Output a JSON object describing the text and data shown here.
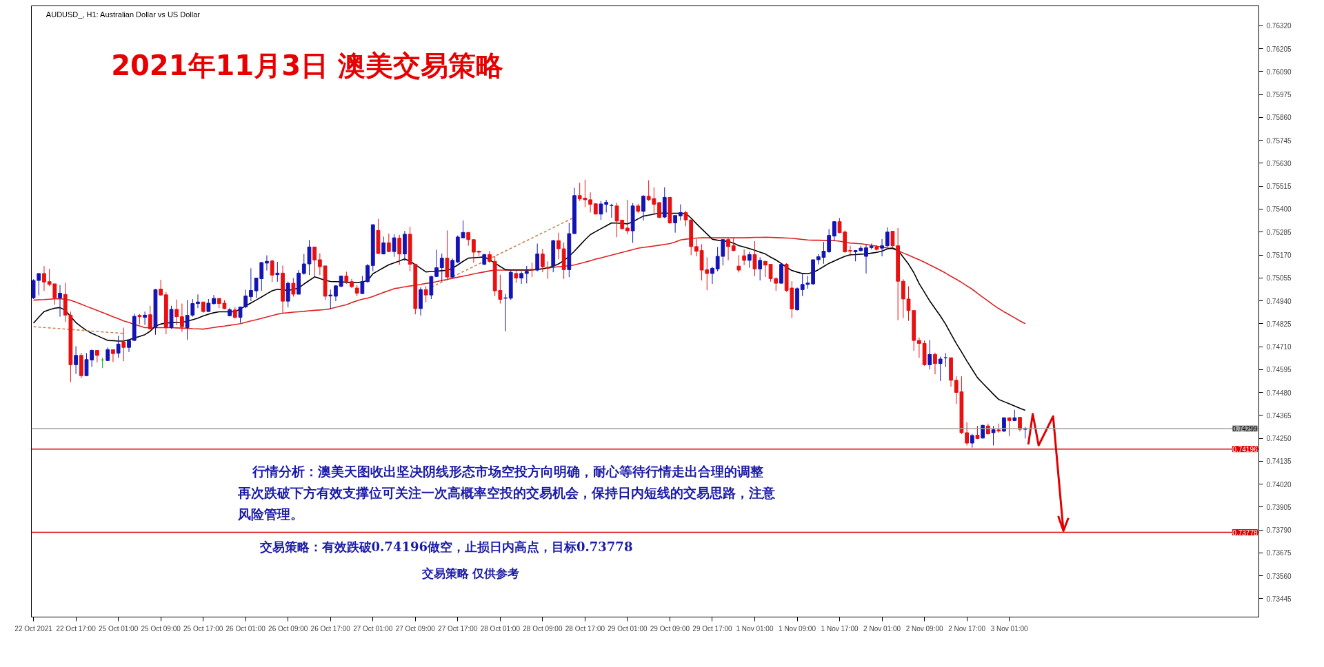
{
  "chart_data": {
    "type": "candlestick",
    "title": "2021年11月3日  澳美交易策略",
    "subtitle": "AUDUSD_, H1:  Australian Dollar vs US Dollar",
    "annotations": [
      "行情分析：澳美天图收出坚决阴线形态市场空投方向明确，耐心等待行情走出合理的调整",
      "再次跌破下方有效支撑位可关注一次高概率空投的交易机会，保持日内短线的交易思路，注意",
      "风险管理。",
      "交易策略：有效跌破0.74196做空，止损日内高点，目标0.73778",
      "交易策略  仅供参考"
    ],
    "categories": [
      "22 Oct 2021",
      null,
      null,
      null,
      null,
      null,
      null,
      null,
      "22 Oct 17:00",
      null,
      null,
      null,
      null,
      null,
      null,
      null,
      "25 Oct 01:00",
      null,
      null,
      null,
      null,
      null,
      null,
      null,
      "25 Oct 09:00",
      null,
      null,
      null,
      null,
      null,
      null,
      null,
      "25 Oct 17:00",
      null,
      null,
      null,
      null,
      null,
      null,
      null,
      "26 Oct 01:00",
      null,
      null,
      null,
      null,
      null,
      null,
      null,
      "26 Oct 09:00",
      null,
      null,
      null,
      null,
      null,
      null,
      null,
      "26 Oct 17:00",
      null,
      null,
      null,
      null,
      null,
      null,
      null,
      "27 Oct 01:00",
      null,
      null,
      null,
      null,
      null,
      null,
      null,
      "27 Oct 09:00",
      null,
      null,
      null,
      null,
      null,
      null,
      null,
      "27 Oct 17:00",
      null,
      null,
      null,
      null,
      null,
      null,
      null,
      "28 Oct 01:00",
      null,
      null,
      null,
      null,
      null,
      null,
      null,
      "28 Oct 09:00",
      null,
      null,
      null,
      null,
      null,
      null,
      null,
      "28 Oct 17:00",
      null,
      null,
      null,
      null,
      null,
      null,
      null,
      "29 Oct 01:00",
      null,
      null,
      null,
      null,
      null,
      null,
      null,
      "29 Oct 09:00",
      null,
      null,
      null,
      null,
      null,
      null,
      null,
      "29 Oct 17:00",
      null,
      null,
      null,
      null,
      null,
      null,
      null,
      "1 Nov 01:00",
      null,
      null,
      null,
      null,
      null,
      null,
      null,
      "1 Nov 09:00",
      null,
      null,
      null,
      null,
      null,
      null,
      null,
      "1 Nov 17:00",
      null,
      null,
      null,
      null,
      null,
      null,
      null,
      "2 Nov 01:00",
      null,
      null,
      null,
      null,
      null,
      null,
      null,
      "2 Nov 09:00",
      null,
      null,
      null,
      null,
      null,
      null,
      null,
      "2 Nov 17:00",
      null,
      null,
      null,
      null,
      null,
      null,
      null,
      "3 Nov 01:00",
      null,
      null,
      null
    ],
    "ohlc": [
      [
        0.74955,
        0.75048,
        0.74949,
        0.75042
      ],
      [
        0.75042,
        0.75077,
        0.74967,
        0.75077
      ],
      [
        0.75077,
        0.75114,
        0.7499,
        0.75034
      ],
      [
        0.75036,
        0.751,
        0.75013,
        0.75022
      ],
      [
        0.75025,
        0.75025,
        0.7492,
        0.74955
      ],
      [
        0.74955,
        0.75019,
        0.7486,
        0.74978
      ],
      [
        0.74972,
        0.7503,
        0.74834,
        0.74868
      ],
      [
        0.74868,
        0.74886,
        0.74533,
        0.74619
      ],
      [
        0.74619,
        0.74712,
        0.74573,
        0.74666
      ],
      [
        0.74666,
        0.74679,
        0.74552,
        0.74564
      ],
      [
        0.74564,
        0.74677,
        0.74564,
        0.74645
      ],
      [
        0.74643,
        0.74695,
        0.74608,
        0.74691
      ],
      [
        0.74691,
        0.74691,
        0.74631,
        0.74666
      ],
      [
        0.74643,
        0.74654,
        0.74602,
        0.74643
      ],
      [
        0.7464,
        0.74706,
        0.74637,
        0.74695
      ],
      [
        0.74695,
        0.74695,
        0.74633,
        0.74675
      ],
      [
        0.74677,
        0.74764,
        0.74654,
        0.74723
      ],
      [
        0.74733,
        0.74805,
        0.74637,
        0.74706
      ],
      [
        0.74706,
        0.74747,
        0.74683,
        0.74741
      ],
      [
        0.74741,
        0.74876,
        0.74738,
        0.74862
      ],
      [
        0.74867,
        0.74874,
        0.74822,
        0.7486
      ],
      [
        0.74857,
        0.74886,
        0.74819,
        0.74868
      ],
      [
        0.7487,
        0.74915,
        0.74795,
        0.74799
      ],
      [
        0.74805,
        0.74999,
        0.7477,
        0.74996
      ],
      [
        0.74999,
        0.75045,
        0.74965,
        0.74969
      ],
      [
        0.7497,
        0.74984,
        0.74772,
        0.74805
      ],
      [
        0.74805,
        0.74915,
        0.74799,
        0.74897
      ],
      [
        0.74897,
        0.74946,
        0.74817,
        0.7486
      ],
      [
        0.7486,
        0.74926,
        0.74784,
        0.7481
      ],
      [
        0.74805,
        0.74944,
        0.74745,
        0.74867
      ],
      [
        0.74868,
        0.74949,
        0.7486,
        0.74926
      ],
      [
        0.74926,
        0.74972,
        0.74903,
        0.74934
      ],
      [
        0.74934,
        0.74934,
        0.7488,
        0.74886
      ],
      [
        0.74886,
        0.74949,
        0.74886,
        0.74928
      ],
      [
        0.74926,
        0.74969,
        0.7492,
        0.74952
      ],
      [
        0.74952,
        0.74952,
        0.74903,
        0.74926
      ],
      [
        0.74928,
        0.74944,
        0.74897,
        0.74901
      ],
      [
        0.74865,
        0.74905,
        0.74862,
        0.74895
      ],
      [
        0.74894,
        0.74909,
        0.74851,
        0.74857
      ],
      [
        0.74857,
        0.74911,
        0.7483,
        0.74909
      ],
      [
        0.74909,
        0.74996,
        0.74903,
        0.74964
      ],
      [
        0.74961,
        0.75103,
        0.74938,
        0.74992
      ],
      [
        0.7499,
        0.75054,
        0.74955,
        0.75054
      ],
      [
        0.75051,
        0.75135,
        0.7499,
        0.75132
      ],
      [
        0.75129,
        0.75168,
        0.75092,
        0.75138
      ],
      [
        0.7514,
        0.75146,
        0.75034,
        0.75069
      ],
      [
        0.75071,
        0.75135,
        0.75036,
        0.75079
      ],
      [
        0.75079,
        0.75117,
        0.7488,
        0.74938
      ],
      [
        0.74938,
        0.75036,
        0.74907,
        0.75028
      ],
      [
        0.75028,
        0.75054,
        0.74961,
        0.74973
      ],
      [
        0.74973,
        0.75094,
        0.74973,
        0.75079
      ],
      [
        0.75077,
        0.75175,
        0.75071,
        0.75125
      ],
      [
        0.75125,
        0.75245,
        0.75069,
        0.7521
      ],
      [
        0.7521,
        0.7521,
        0.75062,
        0.75145
      ],
      [
        0.75146,
        0.75179,
        0.75069,
        0.75111
      ],
      [
        0.75115,
        0.75115,
        0.74944,
        0.74963
      ],
      [
        0.74964,
        0.74996,
        0.74897,
        0.74969
      ],
      [
        0.74963,
        0.75019,
        0.74938,
        0.75015
      ],
      [
        0.75013,
        0.75064,
        0.75007,
        0.75064
      ],
      [
        0.75064,
        0.75086,
        0.75025,
        0.75036
      ],
      [
        0.75036,
        0.7505,
        0.75004,
        0.75011
      ],
      [
        0.75004,
        0.75019,
        0.74963,
        0.74978
      ],
      [
        0.74976,
        0.75065,
        0.74976,
        0.75036
      ],
      [
        0.75036,
        0.75125,
        0.7503,
        0.75117
      ],
      [
        0.75117,
        0.75322,
        0.75088,
        0.75322
      ],
      [
        0.75293,
        0.75351,
        0.75177,
        0.75177
      ],
      [
        0.75175,
        0.75262,
        0.75173,
        0.75231
      ],
      [
        0.75231,
        0.75277,
        0.75184,
        0.75187
      ],
      [
        0.75187,
        0.75274,
        0.75161,
        0.75256
      ],
      [
        0.75254,
        0.75271,
        0.7512,
        0.75175
      ],
      [
        0.75175,
        0.75291,
        0.7514,
        0.75274
      ],
      [
        0.75274,
        0.75312,
        0.75088,
        0.75123
      ],
      [
        0.75123,
        0.75126,
        0.74872,
        0.74901
      ],
      [
        0.74901,
        0.75007,
        0.74866,
        0.74996
      ],
      [
        0.74996,
        0.75013,
        0.74932,
        0.74969
      ],
      [
        0.74969,
        0.75065,
        0.74949,
        0.75062
      ],
      [
        0.75062,
        0.75196,
        0.75059,
        0.75106
      ],
      [
        0.75106,
        0.75177,
        0.75036,
        0.75154
      ],
      [
        0.75154,
        0.75293,
        0.75042,
        0.75059
      ],
      [
        0.75059,
        0.75152,
        0.75054,
        0.75143
      ],
      [
        0.75135,
        0.75268,
        0.75129,
        0.7526
      ],
      [
        0.75256,
        0.75343,
        0.75254,
        0.75283
      ],
      [
        0.75283,
        0.75283,
        0.75216,
        0.75247
      ],
      [
        0.75247,
        0.75247,
        0.75131,
        0.75184
      ],
      [
        0.75189,
        0.75192,
        0.75166,
        0.75184
      ],
      [
        0.75123,
        0.75175,
        0.7512,
        0.75172
      ],
      [
        0.75172,
        0.7519,
        0.75131,
        0.75138
      ],
      [
        0.75138,
        0.75163,
        0.74963,
        0.7499
      ],
      [
        0.74992,
        0.75071,
        0.74926,
        0.74947
      ],
      [
        0.74953,
        0.74975,
        0.74787,
        0.74955
      ],
      [
        0.74953,
        0.75094,
        0.74944,
        0.75083
      ],
      [
        0.75077,
        0.75094,
        0.7503,
        0.75054
      ],
      [
        0.75054,
        0.75088,
        0.75025,
        0.75077
      ],
      [
        0.75077,
        0.75115,
        0.75027,
        0.75088
      ],
      [
        0.75098,
        0.75132,
        0.75059,
        0.75094
      ],
      [
        0.75094,
        0.75227,
        0.75088,
        0.75175
      ],
      [
        0.75175,
        0.75201,
        0.75083,
        0.75111
      ],
      [
        0.75108,
        0.75138,
        0.7505,
        0.75103
      ],
      [
        0.75115,
        0.75245,
        0.75083,
        0.75242
      ],
      [
        0.75242,
        0.75282,
        0.75148,
        0.75201
      ],
      [
        0.75201,
        0.75233,
        0.7505,
        0.75096
      ],
      [
        0.75096,
        0.75331,
        0.75059,
        0.75277
      ],
      [
        0.75277,
        0.75507,
        0.75277,
        0.75468
      ],
      [
        0.75468,
        0.75532,
        0.75441,
        0.75451
      ],
      [
        0.75455,
        0.75548,
        0.75409,
        0.75447
      ],
      [
        0.75447,
        0.75484,
        0.75383,
        0.75424
      ],
      [
        0.75427,
        0.75427,
        0.75375,
        0.75375
      ],
      [
        0.75375,
        0.75441,
        0.75346,
        0.75426
      ],
      [
        0.75424,
        0.75447,
        0.75383,
        0.75434
      ],
      [
        0.75418,
        0.75427,
        0.75357,
        0.75418
      ],
      [
        0.75416,
        0.75432,
        0.75259,
        0.7534
      ],
      [
        0.75345,
        0.75345,
        0.75297,
        0.75302
      ],
      [
        0.75305,
        0.75447,
        0.75274,
        0.75291
      ],
      [
        0.75291,
        0.7543,
        0.75231,
        0.75416
      ],
      [
        0.75416,
        0.75427,
        0.7538,
        0.75389
      ],
      [
        0.75389,
        0.7547,
        0.75343,
        0.75465
      ],
      [
        0.75465,
        0.75545,
        0.75441,
        0.75447
      ],
      [
        0.75453,
        0.75509,
        0.75378,
        0.75424
      ],
      [
        0.75433,
        0.75433,
        0.75355,
        0.75358
      ],
      [
        0.7536,
        0.75509,
        0.75355,
        0.75459
      ],
      [
        0.75459,
        0.75459,
        0.75325,
        0.75331
      ],
      [
        0.75331,
        0.75368,
        0.75282,
        0.75368
      ],
      [
        0.75366,
        0.75424,
        0.75343,
        0.75383
      ],
      [
        0.75383,
        0.75392,
        0.75314,
        0.75346
      ],
      [
        0.75346,
        0.75346,
        0.75169,
        0.75212
      ],
      [
        0.75212,
        0.7525,
        0.75163,
        0.75189
      ],
      [
        0.75192,
        0.75224,
        0.75042,
        0.75094
      ],
      [
        0.75096,
        0.75158,
        0.74993,
        0.75077
      ],
      [
        0.75077,
        0.75111,
        0.75025,
        0.75103
      ],
      [
        0.751,
        0.7521,
        0.75088,
        0.75163
      ],
      [
        0.75163,
        0.7525,
        0.75117,
        0.75247
      ],
      [
        0.75247,
        0.75254,
        0.75143,
        0.75212
      ],
      [
        0.75216,
        0.75256,
        0.75189,
        0.75192
      ],
      [
        0.75114,
        0.75169,
        0.75082,
        0.75094
      ],
      [
        0.75166,
        0.75198,
        0.75119,
        0.75143
      ],
      [
        0.75143,
        0.75186,
        0.75106,
        0.75172
      ],
      [
        0.75172,
        0.75239,
        0.75063,
        0.751
      ],
      [
        0.751,
        0.75158,
        0.75042,
        0.75143
      ],
      [
        0.75138,
        0.75138,
        0.75059,
        0.75119
      ],
      [
        0.75123,
        0.75123,
        0.75036,
        0.75051
      ],
      [
        0.75051,
        0.75059,
        0.7499,
        0.75028
      ],
      [
        0.75028,
        0.75129,
        0.75027,
        0.75123
      ],
      [
        0.75123,
        0.75129,
        0.74984,
        0.74992
      ],
      [
        0.75004,
        0.75038,
        0.74853,
        0.74899
      ],
      [
        0.74895,
        0.75007,
        0.74891,
        0.75001
      ],
      [
        0.74996,
        0.75077,
        0.74964,
        0.75022
      ],
      [
        0.75022,
        0.75065,
        0.75001,
        0.75029
      ],
      [
        0.75025,
        0.75146,
        0.75019,
        0.75146
      ],
      [
        0.75146,
        0.75175,
        0.75123,
        0.75161
      ],
      [
        0.75158,
        0.75235,
        0.75126,
        0.75189
      ],
      [
        0.75186,
        0.753,
        0.75181,
        0.75268
      ],
      [
        0.75265,
        0.7534,
        0.75239,
        0.75337
      ],
      [
        0.75337,
        0.75355,
        0.75279,
        0.75282
      ],
      [
        0.75285,
        0.75293,
        0.75181,
        0.75186
      ],
      [
        0.75192,
        0.75216,
        0.75163,
        0.75189
      ],
      [
        0.75186,
        0.75195,
        0.75138,
        0.75192
      ],
      [
        0.75192,
        0.75216,
        0.75186,
        0.75204
      ],
      [
        0.75163,
        0.75224,
        0.75077,
        0.75206
      ],
      [
        0.75207,
        0.75227,
        0.75198,
        0.75213
      ],
      [
        0.7521,
        0.75219,
        0.75192,
        0.75198
      ],
      [
        0.75204,
        0.7525,
        0.75163,
        0.75216
      ],
      [
        0.75216,
        0.75308,
        0.7521,
        0.75285
      ],
      [
        0.75289,
        0.75289,
        0.7521,
        0.75216
      ],
      [
        0.75216,
        0.75305,
        0.74842,
        0.75038
      ],
      [
        0.75038,
        0.75048,
        0.74853,
        0.74949
      ],
      [
        0.74949,
        0.75013,
        0.74839,
        0.74891
      ],
      [
        0.74891,
        0.74891,
        0.74689,
        0.74741
      ],
      [
        0.74741,
        0.74756,
        0.74654,
        0.74726
      ],
      [
        0.74726,
        0.74741,
        0.74614,
        0.74619
      ],
      [
        0.74619,
        0.74744,
        0.74596,
        0.74671
      ],
      [
        0.74671,
        0.7468,
        0.74571,
        0.74625
      ],
      [
        0.74625,
        0.7466,
        0.74538,
        0.74648
      ],
      [
        0.74654,
        0.74677,
        0.74608,
        0.74654
      ],
      [
        0.74654,
        0.74654,
        0.74509,
        0.74541
      ],
      [
        0.74541,
        0.74561,
        0.74422,
        0.7448
      ],
      [
        0.74483,
        0.74561,
        0.74272,
        0.74278
      ],
      [
        0.74278,
        0.7433,
        0.74214,
        0.74226
      ],
      [
        0.74226,
        0.74272,
        0.74203,
        0.74264
      ],
      [
        0.74266,
        0.74312,
        0.74246,
        0.74249
      ],
      [
        0.74251,
        0.74318,
        0.74249,
        0.74315
      ],
      [
        0.74312,
        0.74324,
        0.7427,
        0.74272
      ],
      [
        0.74278,
        0.74312,
        0.74214,
        0.74293
      ],
      [
        0.74292,
        0.74324,
        0.74278,
        0.74286
      ],
      [
        0.74286,
        0.74355,
        0.74281,
        0.74353
      ],
      [
        0.74353,
        0.74355,
        0.7426,
        0.74339
      ],
      [
        0.74339,
        0.74393,
        0.74336,
        0.74353
      ],
      [
        0.74355,
        0.74355,
        0.74284,
        0.74295
      ],
      [
        0.74295,
        0.74307,
        0.74249,
        0.74299
      ]
    ],
    "colors": [
      "#1414b4",
      "#1414b4",
      "#e81010",
      "#e81010",
      "#e81010",
      "#1414b4",
      "#e81010",
      "#e81010",
      "#1414b4",
      "#e81010",
      "#1414b4",
      "#1414b4",
      "#e81010",
      "#22b322",
      "#1414b4",
      "#e81010",
      "#1414b4",
      "#e81010",
      "#1414b4",
      "#1414b4",
      "#e81010",
      "#1414b4",
      "#e81010",
      "#1414b4",
      "#e81010",
      "#e81010",
      "#1414b4",
      "#e81010",
      "#e81010",
      "#1414b4",
      "#1414b4",
      "#1414b4",
      "#e81010",
      "#1414b4",
      "#1414b4",
      "#e81010",
      "#e81010",
      "#1414b4",
      "#e81010",
      "#1414b4",
      "#1414b4",
      "#1414b4",
      "#1414b4",
      "#1414b4",
      "#1414b4",
      "#e81010",
      "#1414b4",
      "#e81010",
      "#1414b4",
      "#e81010",
      "#1414b4",
      "#1414b4",
      "#1414b4",
      "#e81010",
      "#e81010",
      "#e81010",
      "#1414b4",
      "#1414b4",
      "#1414b4",
      "#e81010",
      "#e81010",
      "#e81010",
      "#1414b4",
      "#1414b4",
      "#1414b4",
      "#e81010",
      "#1414b4",
      "#e81010",
      "#1414b4",
      "#e81010",
      "#1414b4",
      "#e81010",
      "#e81010",
      "#1414b4",
      "#e81010",
      "#1414b4",
      "#1414b4",
      "#1414b4",
      "#e81010",
      "#1414b4",
      "#1414b4",
      "#1414b4",
      "#e81010",
      "#e81010",
      "#e81010",
      "#1414b4",
      "#e81010",
      "#e81010",
      "#e81010",
      "#1414b4",
      "#1414b4",
      "#e81010",
      "#1414b4",
      "#1414b4",
      "#e81010",
      "#1414b4",
      "#e81010",
      "#e81010",
      "#1414b4",
      "#e81010",
      "#e81010",
      "#1414b4",
      "#1414b4",
      "#e81010",
      "#e81010",
      "#e81010",
      "#e81010",
      "#1414b4",
      "#1414b4",
      "#1414b4",
      "#e81010",
      "#e81010",
      "#e81010",
      "#1414b4",
      "#e81010",
      "#1414b4",
      "#e81010",
      "#e81010",
      "#e81010",
      "#1414b4",
      "#e81010",
      "#1414b4",
      "#1414b4",
      "#e81010",
      "#e81010",
      "#e81010",
      "#e81010",
      "#e81010",
      "#1414b4",
      "#1414b4",
      "#1414b4",
      "#e81010",
      "#e81010",
      "#e81010",
      "#e81010",
      "#1414b4",
      "#e81010",
      "#1414b4",
      "#e81010",
      "#e81010",
      "#e81010",
      "#1414b4",
      "#e81010",
      "#e81010",
      "#1414b4",
      "#1414b4",
      "#1414b4",
      "#1414b4",
      "#1414b4",
      "#1414b4",
      "#1414b4",
      "#1414b4",
      "#e81010",
      "#e81010",
      "#e81010",
      "#1414b4",
      "#1414b4",
      "#1414b4",
      "#1414b4",
      "#e81010",
      "#1414b4",
      "#1414b4",
      "#e81010",
      "#e81010",
      "#e81010",
      "#e81010",
      "#e81010",
      "#e81010",
      "#e81010",
      "#1414b4",
      "#e81010",
      "#1414b4",
      "#1414b4",
      "#e81010",
      "#e81010",
      "#e81010",
      "#e81010",
      "#1414b4",
      "#e81010",
      "#1414b4",
      "#e81010",
      "#1414b4",
      "#e81010",
      "#1414b4",
      "#e81010",
      "#1414b4",
      "#e81010",
      "#1414b4"
    ],
    "series": [
      {
        "type": "line",
        "color": "#e02020",
        "values": [
          0.74943,
          0.74945,
          0.74946,
          0.74948,
          0.7495,
          0.74951,
          0.74947,
          0.74943,
          0.74933,
          0.74923,
          0.74912,
          0.74902,
          0.74892,
          0.74881,
          0.74871,
          0.7486,
          0.7485,
          0.74839,
          0.74831,
          0.74822,
          0.74814,
          0.74805,
          0.74805,
          0.74805,
          0.74805,
          0.74805,
          0.74805,
          0.74804,
          0.74803,
          0.74802,
          0.748,
          0.74799,
          0.74798,
          0.74802,
          0.74806,
          0.7481,
          0.74813,
          0.74817,
          0.74821,
          0.74825,
          0.74832,
          0.74839,
          0.74845,
          0.74852,
          0.74859,
          0.74866,
          0.74873,
          0.74878,
          0.7488,
          0.74883,
          0.74885,
          0.74887,
          0.7489,
          0.74892,
          0.74894,
          0.74896,
          0.749,
          0.74907,
          0.74914,
          0.7492,
          0.74931,
          0.7494,
          0.74948,
          0.74953,
          0.74962,
          0.74972,
          0.74982,
          0.74991,
          0.75001,
          0.75005,
          0.7501,
          0.75014,
          0.75018,
          0.75022,
          0.75027,
          0.75031,
          0.75036,
          0.75042,
          0.75047,
          0.75053,
          0.75058,
          0.75064,
          0.75069,
          0.75075,
          0.7508,
          0.75085,
          0.7509,
          0.75094,
          0.75094,
          0.75094,
          0.75094,
          0.75094,
          0.75094,
          0.75094,
          0.75094,
          null,
          0.75101,
          0.75105,
          0.75108,
          0.75111,
          0.75113,
          0.75116,
          0.7512,
          0.75127,
          0.75134,
          0.75141,
          0.75149,
          0.75155,
          0.75162,
          0.75169,
          0.75176,
          0.75183,
          0.7519,
          0.75197,
          0.75204,
          0.75208,
          0.75211,
          0.75215,
          0.75219,
          0.75223,
          0.75227,
          0.75235,
          0.75245,
          0.75249,
          0.75252,
          0.75255,
          0.75256,
          0.75256,
          0.75256,
          0.75256,
          0.75256,
          0.75256,
          0.75256,
          0.75256,
          0.75256,
          0.75257,
          0.75258,
          0.75258,
          0.75259,
          0.75258,
          0.75257,
          0.75256,
          0.75255,
          0.75254,
          0.75251,
          0.75248,
          0.75245,
          0.75244,
          0.75244,
          0.75243,
          0.75243,
          0.75242,
          0.75239,
          0.75233,
          0.7523,
          0.75228,
          0.75226,
          0.75223,
          0.75218,
          0.75214,
          0.7521,
          0.75205,
          0.75201,
          0.75192,
          0.7518,
          0.75169,
          0.75157,
          0.75146,
          0.75134,
          0.7512,
          0.75107,
          0.75093,
          0.75079,
          0.75063,
          0.75048,
          0.75032,
          0.75015,
          0.74998,
          0.74978,
          0.74958,
          0.74939,
          0.74919,
          0.74901,
          0.74885,
          0.7487,
          0.74855,
          0.74839,
          0.74825
        ]
      },
      {
        "type": "line",
        "color": "#000000",
        "values": [
          0.74828,
          0.74858,
          0.74886,
          0.74895,
          0.74903,
          0.74906,
          0.74892,
          0.74861,
          0.74831,
          0.7481,
          0.74791,
          0.74777,
          0.74765,
          0.74753,
          0.74741,
          0.7474,
          0.74738,
          0.74738,
          0.74745,
          0.74753,
          0.74761,
          0.7477,
          0.74787,
          0.74813,
          0.74823,
          0.74829,
          0.7483,
          0.74831,
          0.74832,
          0.74837,
          0.74845,
          0.74853,
          0.74864,
          0.74873,
          0.7488,
          0.74885,
          0.74885,
          0.74885,
          0.74885,
          0.74899,
          0.74914,
          0.74929,
          0.74944,
          0.74959,
          0.74975,
          0.7499,
          0.74998,
          0.74995,
          0.74992,
          0.74997,
          0.75004,
          0.75024,
          0.75042,
          0.7506,
          0.75052,
          0.75043,
          0.75037,
          0.75036,
          0.75035,
          0.75033,
          0.75032,
          0.75031,
          0.75035,
          0.75041,
          0.75076,
          0.75091,
          0.75106,
          0.75121,
          0.7513,
          0.7514,
          0.7515,
          0.75138,
          0.75121,
          0.75103,
          0.75085,
          0.75087,
          0.75089,
          0.75091,
          0.75093,
          0.75103,
          0.7512,
          0.75138,
          0.75154,
          0.75156,
          0.75158,
          0.7516,
          0.75146,
          0.75129,
          0.75112,
          0.75096,
          0.75095,
          0.75095,
          0.75095,
          0.75095,
          0.75095,
          0.75097,
          0.75101,
          0.75105,
          0.75114,
          0.75125,
          0.75142,
          0.75163,
          0.75189,
          0.75218,
          0.75246,
          0.75272,
          0.75287,
          0.75302,
          0.75316,
          0.75331,
          0.7533,
          0.75328,
          0.75326,
          0.75337,
          0.75351,
          0.75365,
          0.7537,
          0.75375,
          0.7538,
          0.7538,
          0.75379,
          0.75379,
          0.75379,
          0.75378,
          0.75355,
          0.75327,
          0.75301,
          0.75275,
          0.75249,
          0.75244,
          0.75241,
          0.75238,
          0.75229,
          0.75217,
          0.7521,
          0.75202,
          0.75193,
          0.75184,
          0.75175,
          0.75159,
          0.75145,
          0.75127,
          0.75108,
          0.75092,
          0.75084,
          0.75077,
          0.75076,
          0.75083,
          0.75096,
          0.75112,
          0.75128,
          0.7514,
          0.75152,
          0.75163,
          0.75171,
          0.75172,
          0.75174,
          0.75175,
          0.75179,
          0.75183,
          0.75189,
          0.752,
          0.75205,
          0.75194,
          0.75159,
          0.75124,
          0.75081,
          0.75026,
          0.74983,
          0.74939,
          0.74901,
          0.74864,
          0.74822,
          0.74774,
          0.74726,
          0.74683,
          0.74638,
          0.74596,
          0.74554,
          0.74526,
          0.74499,
          0.74471,
          0.74445,
          0.74434,
          0.74423,
          0.74412,
          0.74401,
          0.7439
        ]
      },
      {
        "type": "line",
        "color": "#d08050",
        "line_style": "dashed",
        "values": [
          0.7481,
          0.74808,
          0.74806,
          0.74804,
          0.74802,
          0.748,
          0.74798,
          0.74796,
          0.74794,
          0.74792,
          0.7479,
          0.74788,
          0.74786,
          0.74784,
          0.74782,
          0.7478,
          0.74778,
          0.74776,
          null,
          null,
          null,
          null,
          null,
          null,
          null,
          null,
          null,
          null,
          null,
          null,
          null,
          null,
          null,
          null,
          null,
          null,
          null,
          null,
          null,
          null,
          null,
          null,
          null,
          null,
          null,
          null,
          null,
          null,
          null,
          null,
          null,
          null,
          null,
          null,
          null,
          null,
          null,
          null,
          null,
          null,
          null,
          null,
          null,
          null,
          null,
          null,
          null,
          null,
          null,
          null,
          null,
          null,
          null,
          null,
          null,
          null,
          null,
          null,
          null,
          null,
          null,
          null,
          null,
          null,
          null,
          null,
          null,
          null,
          null,
          null,
          null,
          null,
          null,
          null,
          null,
          null,
          null,
          null,
          null,
          null,
          null,
          null,
          null,
          null,
          null,
          null,
          null,
          null,
          null,
          null,
          null,
          null,
          null,
          null,
          null,
          null,
          null,
          null,
          null,
          null,
          null,
          null,
          null,
          null,
          null,
          null,
          null,
          null,
          null,
          null,
          null,
          null,
          null,
          null,
          null,
          null,
          null,
          null,
          null,
          null,
          null,
          null,
          null,
          null,
          null,
          null,
          null,
          null,
          null,
          null,
          null,
          null,
          null,
          null,
          null,
          null,
          null,
          null,
          null,
          null,
          null,
          null,
          null,
          null,
          null,
          null,
          null,
          null,
          null,
          null,
          null,
          null,
          null,
          null,
          null,
          null,
          null,
          null,
          null,
          null,
          null,
          null,
          null,
          null,
          null,
          null,
          null,
          null
        ]
      },
      {
        "type": "line",
        "color": "#d08050",
        "line_style": "dashed",
        "values": [
          null,
          null,
          null,
          null,
          null,
          null,
          null,
          null,
          null,
          null,
          null,
          null,
          null,
          null,
          null,
          null,
          null,
          null,
          null,
          null,
          null,
          null,
          null,
          null,
          null,
          null,
          null,
          null,
          null,
          null,
          null,
          null,
          null,
          null,
          null,
          null,
          null,
          null,
          null,
          null,
          null,
          null,
          null,
          null,
          null,
          null,
          null,
          null,
          null,
          null,
          null,
          null,
          null,
          null,
          null,
          null,
          null,
          null,
          null,
          null,
          null,
          null,
          null,
          null,
          null,
          null,
          null,
          null,
          null,
          null,
          null,
          null,
          null,
          null,
          null,
          0.75008,
          0.75021,
          0.75034,
          0.75047,
          0.7506,
          0.75073,
          0.75086,
          0.75099,
          0.75112,
          0.75125,
          0.75138,
          0.75151,
          0.75164,
          0.75177,
          0.7519,
          0.75203,
          0.75216,
          0.75229,
          0.75242,
          0.75255,
          0.75268,
          0.75281,
          0.75294,
          0.75307,
          0.7532,
          0.75333,
          0.75346,
          0.75359,
          null,
          null,
          null,
          null,
          null,
          null,
          null,
          null,
          null,
          null,
          null,
          null,
          null,
          null,
          null,
          null,
          null,
          null,
          null,
          null,
          null,
          null,
          null,
          null,
          null,
          null,
          null,
          null,
          null,
          null,
          null,
          null,
          null,
          null,
          null,
          null,
          null,
          null,
          null,
          null,
          null,
          null,
          null,
          null,
          null,
          null,
          null,
          null,
          null,
          null,
          null,
          null,
          null,
          null,
          null,
          null,
          null,
          null,
          null,
          null,
          null,
          null,
          null,
          null,
          null,
          null,
          null,
          null,
          null,
          null,
          null,
          null,
          null,
          null,
          null,
          null,
          null,
          null,
          null,
          null,
          null,
          null,
          null,
          null,
          null
        ]
      }
    ],
    "ref_lines": [
      {
        "axis": "y",
        "value": 0.74299,
        "label": "0.74299",
        "color": "#a0a0a0"
      },
      {
        "axis": "y",
        "value": 0.74196,
        "label": "0.74196",
        "color": "#e00000"
      },
      {
        "axis": "y",
        "value": 0.73778,
        "label": "0.73778",
        "color": "#e00000"
      }
    ],
    "ylim": [
      0.73353,
      0.7642
    ],
    "yticks": [
      {
        "value": 0.7632,
        "label": "0.76320"
      },
      {
        "value": 0.76205,
        "label": "0.76205"
      },
      {
        "value": 0.7609,
        "label": "0.76090"
      },
      {
        "value": 0.75975,
        "label": "0.75975"
      },
      {
        "value": 0.7586,
        "label": "0.75860"
      },
      {
        "value": 0.75745,
        "label": "0.75745"
      },
      {
        "value": 0.7563,
        "label": "0.75630"
      },
      {
        "value": 0.75515,
        "label": "0.75515"
      },
      {
        "value": 0.754,
        "label": "0.75400"
      },
      {
        "value": 0.75285,
        "label": "0.75285"
      },
      {
        "value": 0.7517,
        "label": "0.75170"
      },
      {
        "value": 0.75055,
        "label": "0.75055"
      },
      {
        "value": 0.7494,
        "label": "0.74940"
      },
      {
        "value": 0.74825,
        "label": "0.74825"
      },
      {
        "value": 0.7471,
        "label": "0.74710"
      },
      {
        "value": 0.74595,
        "label": "0.74595"
      },
      {
        "value": 0.7448,
        "label": "0.74480"
      },
      {
        "value": 0.74365,
        "label": "0.74365"
      },
      {
        "value": 0.7425,
        "label": "0.74250"
      },
      {
        "value": 0.74135,
        "label": "0.74135"
      },
      {
        "value": 0.7402,
        "label": "0.74020"
      },
      {
        "value": 0.73905,
        "label": "0.73905"
      },
      {
        "value": 0.7379,
        "label": "0.73790"
      },
      {
        "value": 0.73675,
        "label": "0.73675"
      },
      {
        "value": 0.7356,
        "label": "0.73560"
      },
      {
        "value": 0.73445,
        "label": "0.73445"
      }
    ],
    "grid": false
  }
}
